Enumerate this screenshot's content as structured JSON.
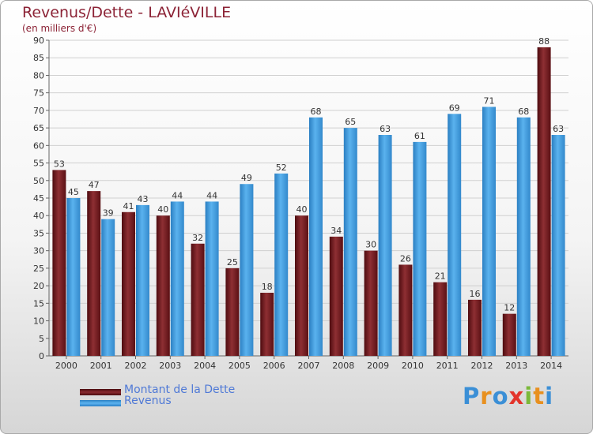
{
  "header": {
    "title": "Revenus/Dette - LAVIéVILLE",
    "subtitle": "(en milliers d'€)"
  },
  "legend": {
    "items": [
      {
        "label": "Montant de la Dette",
        "color": "#7b1a1f"
      },
      {
        "label": "Revenus",
        "color": "#4aa3e6"
      }
    ]
  },
  "logo": {
    "text": "Proxiti"
  },
  "colors": {
    "dette": "#7b1a1f",
    "revenus": "#4aa3e6",
    "grid": "#d0d0d0",
    "axis": "#666666"
  },
  "chart_data": {
    "type": "bar",
    "categories": [
      "2000",
      "2001",
      "2002",
      "2003",
      "2004",
      "2005",
      "2006",
      "2007",
      "2008",
      "2009",
      "2010",
      "2011",
      "2012",
      "2013",
      "2014"
    ],
    "series": [
      {
        "name": "Montant de la Dette",
        "values": [
          53,
          47,
          41,
          40,
          32,
          25,
          18,
          40,
          34,
          30,
          26,
          21,
          16,
          12,
          88
        ]
      },
      {
        "name": "Revenus",
        "values": [
          45,
          39,
          43,
          44,
          44,
          49,
          52,
          68,
          65,
          63,
          61,
          69,
          71,
          68,
          63
        ]
      }
    ],
    "yticks": [
      0,
      5,
      10,
      15,
      20,
      25,
      30,
      35,
      40,
      45,
      50,
      55,
      60,
      65,
      70,
      75,
      80,
      85,
      90
    ],
    "ylim": [
      0,
      90
    ],
    "grid": true,
    "legend_position": "bottom-left"
  }
}
